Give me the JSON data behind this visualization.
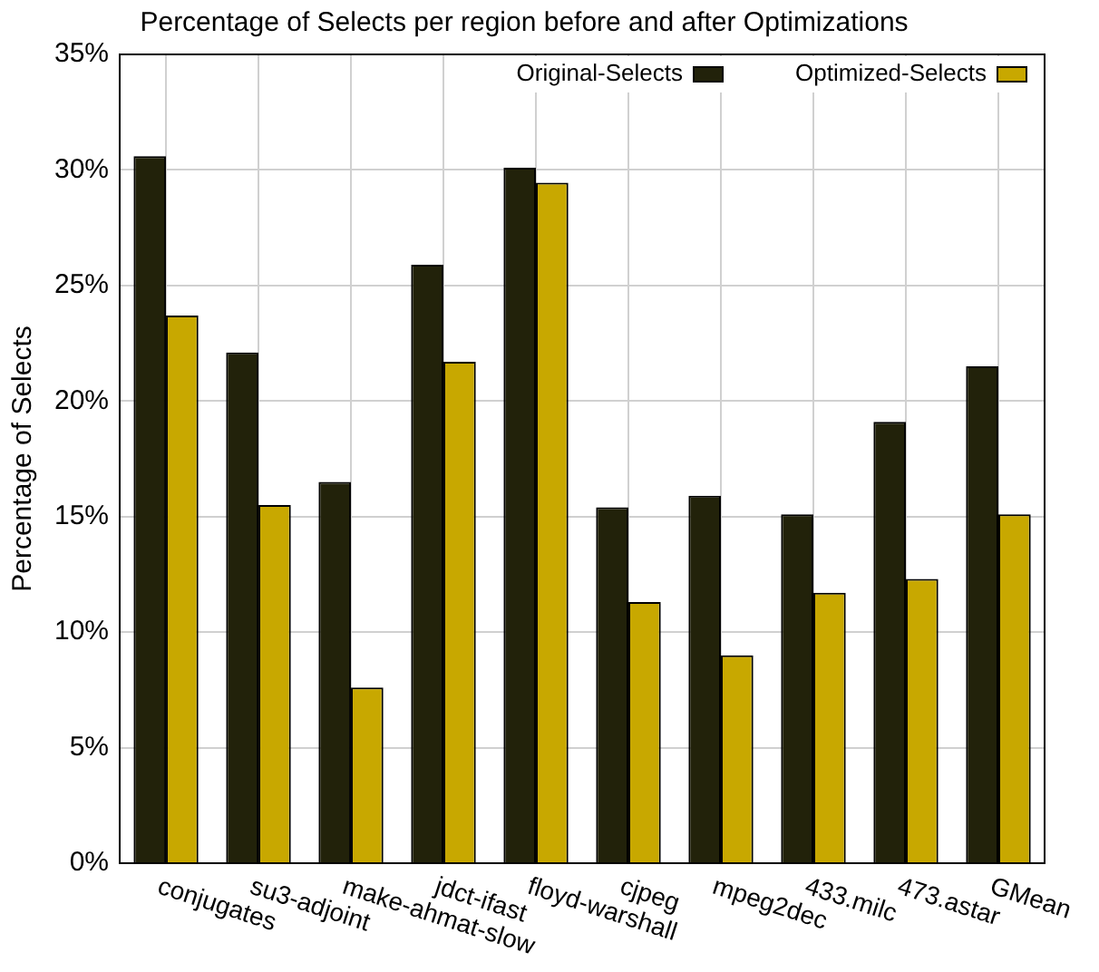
{
  "chart_data": {
    "type": "bar",
    "title": "Percentage of Selects per region before and after Optimizations",
    "ylabel": "Percentage of Selects",
    "categories": [
      "conjugates",
      "su3-adjoint",
      "make-ahmat-slow",
      "jdct-ifast",
      "floyd-warshall",
      "cjpeg",
      "mpeg2dec",
      "433.milc",
      "473.astar",
      "GMean"
    ],
    "series": [
      {
        "name": "Original-Selects",
        "color": "#22220a",
        "values": [
          30.6,
          22.1,
          16.5,
          25.9,
          30.1,
          15.4,
          15.9,
          15.1,
          19.1,
          21.5
        ]
      },
      {
        "name": "Optimized-Selects",
        "color": "#c8a800",
        "values": [
          23.7,
          15.5,
          7.6,
          21.7,
          29.45,
          11.3,
          9.0,
          11.7,
          12.3,
          15.1
        ]
      }
    ],
    "ylim": [
      0,
      35
    ],
    "yticks": [
      {
        "value": 0,
        "label": "0%"
      },
      {
        "value": 5,
        "label": "5%"
      },
      {
        "value": 10,
        "label": "10%"
      },
      {
        "value": 15,
        "label": "15%"
      },
      {
        "value": 20,
        "label": "20%"
      },
      {
        "value": 25,
        "label": "25%"
      },
      {
        "value": 30,
        "label": "30%"
      },
      {
        "value": 35,
        "label": "35%"
      }
    ],
    "grid": true,
    "legend": "top right"
  }
}
